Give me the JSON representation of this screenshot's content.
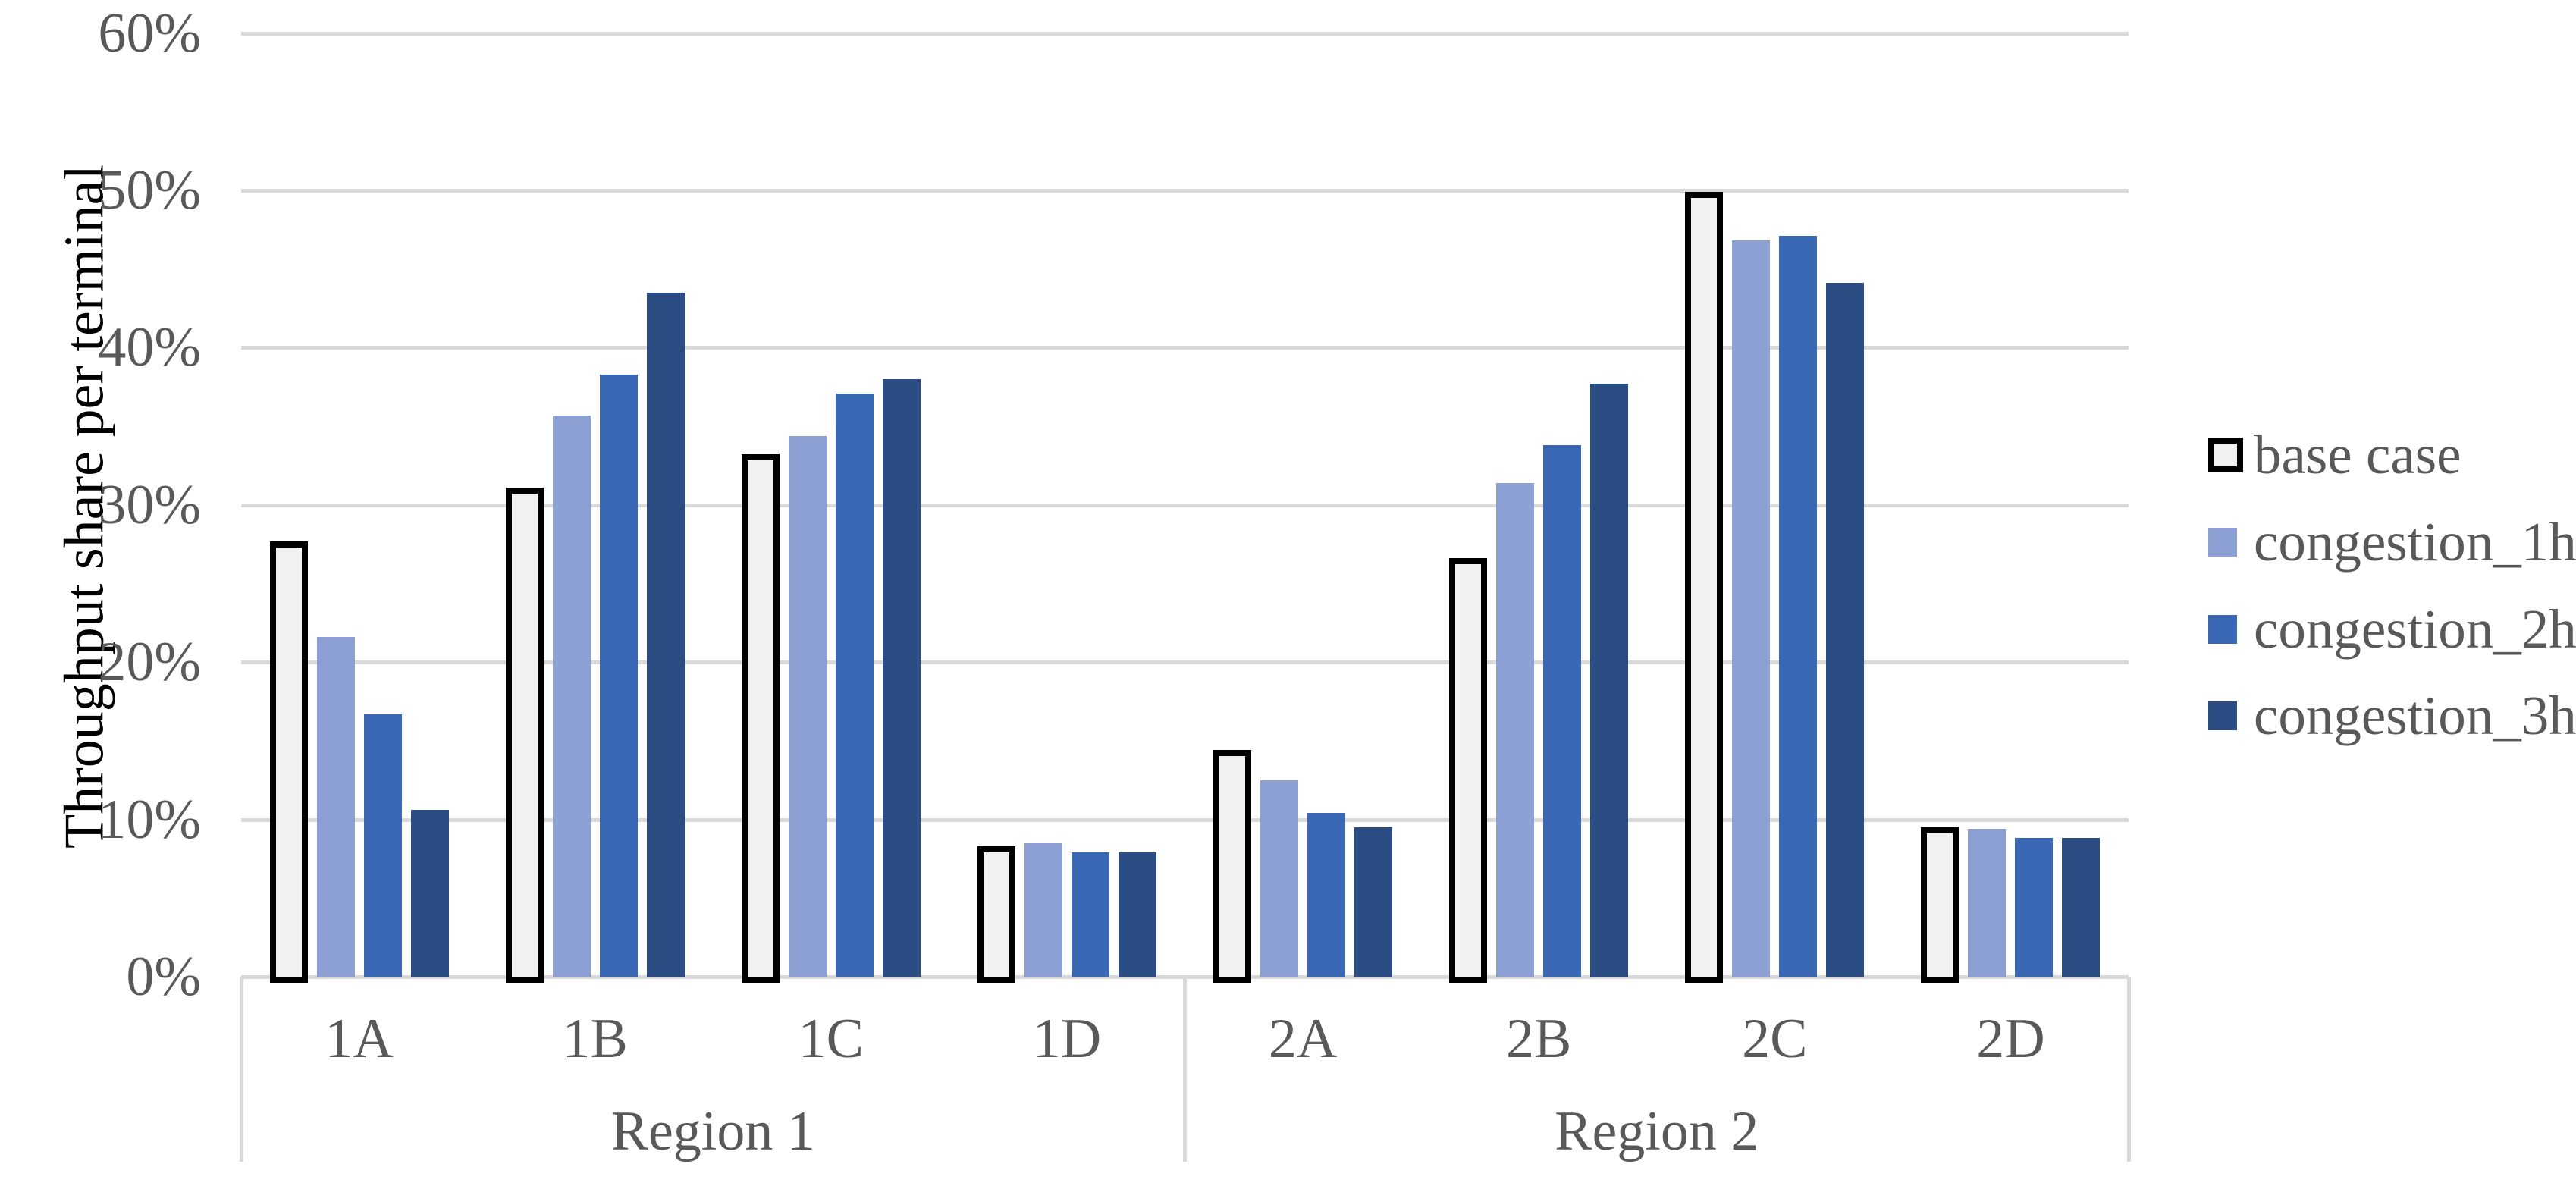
{
  "chart_data": {
    "type": "bar",
    "title": "",
    "ylabel": "Throughput share per terminal",
    "xlabel": "",
    "ylim": [
      0,
      60
    ],
    "y_ticks": [
      "0%",
      "10%",
      "20%",
      "30%",
      "40%",
      "50%",
      "60%"
    ],
    "grid": true,
    "legend_position": "right",
    "categories": [
      "1A",
      "1B",
      "1C",
      "1D",
      "2A",
      "2B",
      "2C",
      "2D"
    ],
    "category_groups": [
      {
        "label": "Region 1",
        "categories": [
          "1A",
          "1B",
          "1C",
          "1D"
        ]
      },
      {
        "label": "Region 2",
        "categories": [
          "2A",
          "2B",
          "2C",
          "2D"
        ]
      }
    ],
    "series": [
      {
        "name": "base case",
        "fill": "#F1F1F1",
        "border": "#000000",
        "values": [
          27.7,
          31.1,
          33.2,
          8.3,
          14.4,
          26.6,
          49.9,
          9.5
        ]
      },
      {
        "name": "congestion_1h",
        "fill": "#8CA0D4",
        "border": null,
        "values": [
          21.6,
          35.7,
          34.4,
          8.5,
          12.5,
          31.4,
          46.8,
          9.4
        ]
      },
      {
        "name": "congestion_2h",
        "fill": "#3B68B4",
        "border": null,
        "values": [
          16.7,
          38.3,
          37.1,
          7.9,
          10.4,
          33.8,
          47.1,
          8.8
        ]
      },
      {
        "name": "congestion_3h",
        "fill": "#2C4D84",
        "border": null,
        "values": [
          10.6,
          43.5,
          38.0,
          7.9,
          9.5,
          37.7,
          44.1,
          8.8
        ]
      }
    ],
    "colors": {
      "gridline": "#D9D9D9",
      "text": "#595959",
      "background": "#FFFFFF"
    }
  }
}
